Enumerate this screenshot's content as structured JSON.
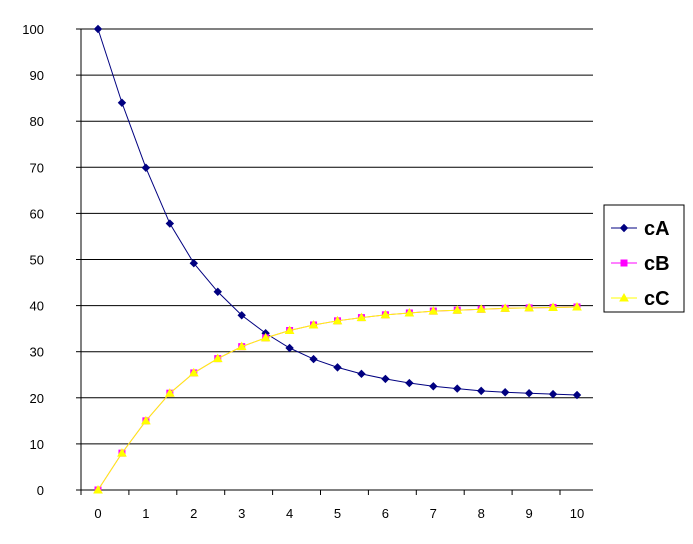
{
  "chart_data": {
    "type": "line",
    "title": "",
    "xlabel": "",
    "ylabel": "",
    "xlim": [
      0,
      10
    ],
    "ylim": [
      0,
      100
    ],
    "x_ticks": [
      0,
      1,
      2,
      3,
      4,
      5,
      6,
      7,
      8,
      9,
      10
    ],
    "y_ticks": [
      0,
      10,
      20,
      30,
      40,
      50,
      60,
      70,
      80,
      90,
      100
    ],
    "grid": "horizontal",
    "legend_position": "right",
    "x": [
      0,
      0.5,
      1,
      1.5,
      2,
      2.5,
      3,
      3.5,
      4,
      4.5,
      5,
      5.5,
      6,
      6.5,
      7,
      7.5,
      8,
      8.5,
      9,
      9.5,
      10
    ],
    "series": [
      {
        "name": "cA",
        "color": "#000080",
        "marker": "diamond",
        "values": [
          100,
          84,
          69.9,
          57.8,
          49.2,
          43,
          37.9,
          34,
          30.8,
          28.4,
          26.6,
          25.2,
          24.1,
          23.2,
          22.5,
          22,
          21.5,
          21.2,
          21,
          20.8,
          20.6
        ]
      },
      {
        "name": "cB",
        "color": "#ff00ff",
        "marker": "square",
        "values": [
          0,
          8,
          15,
          21,
          25.4,
          28.5,
          31.1,
          33,
          34.6,
          35.8,
          36.7,
          37.4,
          38,
          38.4,
          38.8,
          39,
          39.2,
          39.4,
          39.5,
          39.6,
          39.7
        ]
      },
      {
        "name": "cC",
        "color": "#ffff00",
        "marker": "triangle",
        "values": [
          0,
          8,
          15,
          21,
          25.4,
          28.5,
          31.1,
          33,
          34.6,
          35.8,
          36.7,
          37.4,
          38,
          38.4,
          38.8,
          39,
          39.2,
          39.4,
          39.5,
          39.6,
          39.7
        ]
      }
    ]
  }
}
